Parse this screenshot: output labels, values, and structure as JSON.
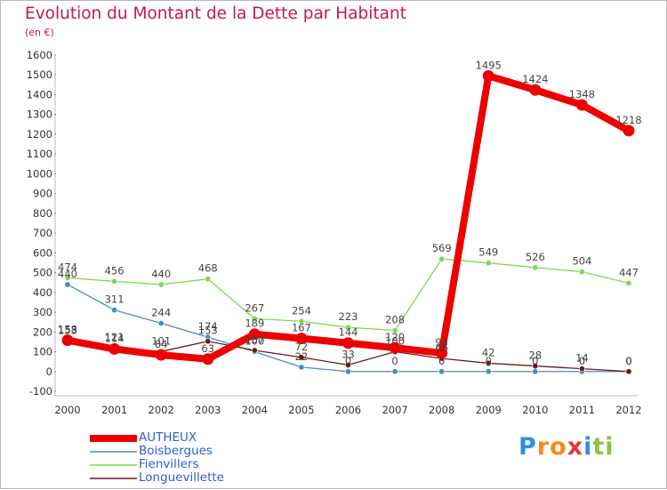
{
  "title": "Evolution du Montant de la Dette par Habitant",
  "unit": "(en €)",
  "brand": {
    "text": "Proxiti",
    "letters": [
      "P",
      "r",
      "o",
      "x",
      "i",
      "t",
      "i"
    ],
    "colors": [
      "#2d8fe0",
      "#f28c1e",
      "#f28c1e",
      "#e53935",
      "#2d8fe0",
      "#8bc34a",
      "#8bc34a"
    ]
  },
  "chart_data": {
    "type": "line",
    "categories": [
      "2000",
      "2001",
      "2002",
      "2003",
      "2004",
      "2005",
      "2006",
      "2007",
      "2008",
      "2009",
      "2010",
      "2011",
      "2012"
    ],
    "ylim": [
      -100,
      1600
    ],
    "yticks": [
      -100,
      0,
      100,
      200,
      300,
      400,
      500,
      600,
      700,
      800,
      900,
      1000,
      1100,
      1200,
      1300,
      1400,
      1500,
      1600
    ],
    "grid": false,
    "legend_position": "bottom-left",
    "series": [
      {
        "name": "AUTHEUX",
        "color": "#ee0000",
        "values": [
          158,
          114,
          84,
          63,
          189,
          167,
          144,
          120,
          93,
          1495,
          1424,
          1348,
          1218
        ]
      },
      {
        "name": "Boisbergues",
        "color": "#4a8ac6",
        "values": [
          440,
          311,
          244,
          174,
          100,
          22,
          0,
          0,
          0,
          0,
          0,
          0,
          0
        ]
      },
      {
        "name": "Fienvillers",
        "color": "#7ed957",
        "values": [
          474,
          456,
          440,
          468,
          267,
          254,
          223,
          208,
          569,
          549,
          526,
          504,
          447
        ]
      },
      {
        "name": "Longuevillette",
        "color": "#6b1a1a",
        "values": [
          153,
          121,
          101,
          153,
          107,
          72,
          33,
          100,
          66,
          42,
          28,
          14,
          0
        ]
      }
    ]
  }
}
